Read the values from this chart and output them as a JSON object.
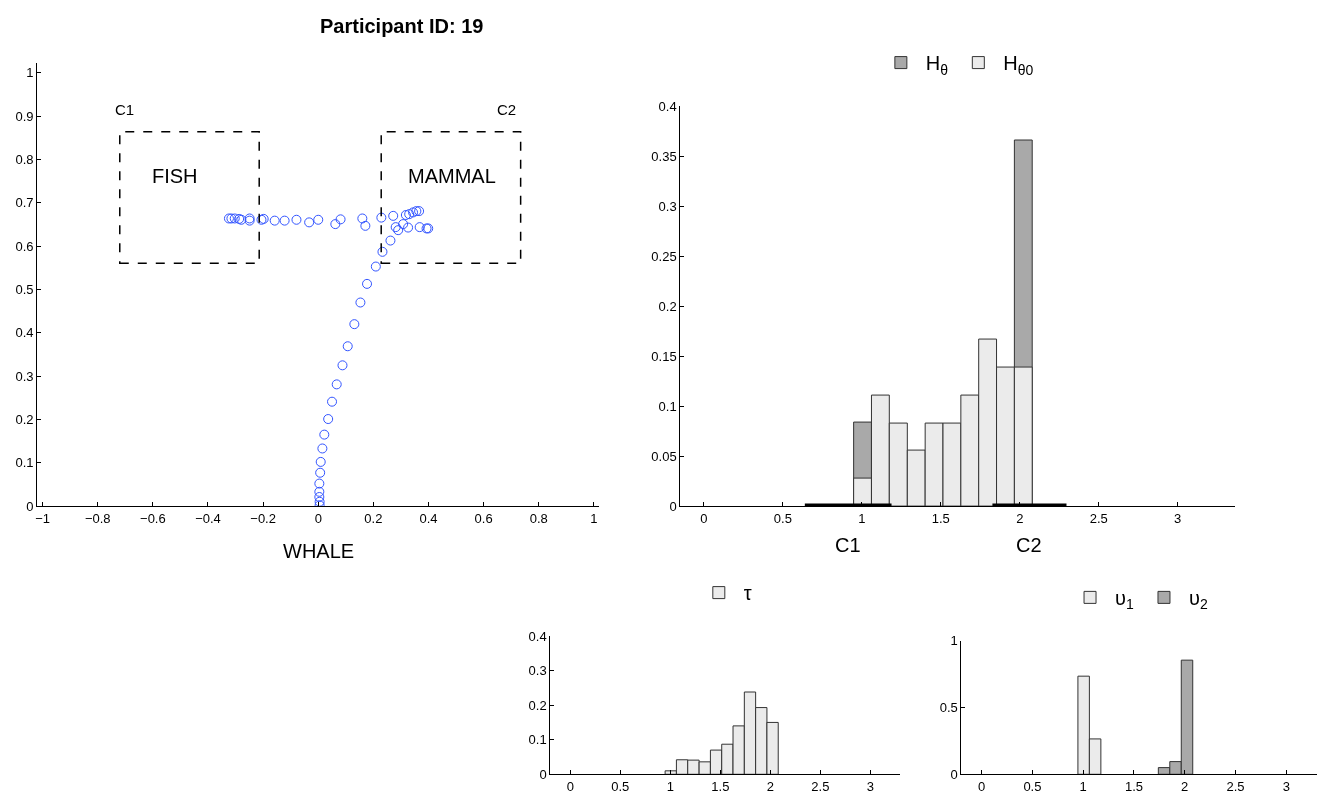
{
  "chart_data": [
    {
      "type": "scatter",
      "title": "Participant ID: 19",
      "xlabel": "WHALE",
      "marker": "circle",
      "legend": false,
      "xlim": [
        -1.02,
        1.02
      ],
      "xticks": [
        -1,
        -0.8,
        -0.6,
        -0.4,
        -0.2,
        0,
        0.2,
        0.4,
        0.6,
        0.8,
        1
      ],
      "ylim": [
        0,
        1.023
      ],
      "yticks": [
        0,
        0.1,
        0.2,
        0.3,
        0.4,
        0.5,
        0.6,
        0.7,
        0.8,
        0.9,
        1
      ],
      "series": [
        {
          "color": "#3355ff",
          "x": [
            0.005,
            0.005,
            0.004,
            0.004,
            0.004,
            0.007,
            0.009,
            0.015,
            0.022,
            0.036,
            0.05,
            0.067,
            0.088,
            0.107,
            0.131,
            0.153,
            0.177,
            0.209,
            0.233,
            0.262,
            -0.324,
            -0.315,
            -0.303,
            -0.287,
            -0.279,
            -0.249,
            -0.249,
            -0.206,
            -0.198,
            -0.158,
            -0.122,
            -0.079,
            -0.033,
            0.0,
            0.062,
            0.081,
            0.16,
            0.171,
            0.229,
            0.272,
            0.281,
            0.29,
            0.308,
            0.318,
            0.326,
            0.33,
            0.344,
            0.356,
            0.366,
            0.368,
            0.393,
            0.399
          ],
          "values": [
            0.002,
            0.01,
            0.021,
            0.033,
            0.052,
            0.077,
            0.102,
            0.133,
            0.165,
            0.201,
            0.241,
            0.281,
            0.325,
            0.369,
            0.42,
            0.47,
            0.513,
            0.553,
            0.587,
            0.613,
            0.664,
            0.664,
            0.664,
            0.663,
            0.661,
            0.664,
            0.659,
            0.661,
            0.663,
            0.659,
            0.659,
            0.661,
            0.655,
            0.661,
            0.651,
            0.662,
            0.664,
            0.647,
            0.666,
            0.67,
            0.644,
            0.637,
            0.651,
            0.672,
            0.643,
            0.674,
            0.678,
            0.681,
            0.681,
            0.644,
            0.641,
            0.641
          ]
        }
      ],
      "annotations": [
        "C1",
        "FISH",
        "C2",
        "MAMMAL"
      ]
    },
    {
      "type": "histogram",
      "legend": "top",
      "bins": [
        0.948,
        1.061,
        1.174,
        1.288,
        1.401,
        1.514,
        1.627,
        1.74,
        1.853,
        1.966,
        2.079
      ],
      "xlim": [
        -0.15,
        3.36
      ],
      "xticks": [
        0,
        0.5,
        1,
        1.5,
        2,
        2.5,
        3
      ],
      "ylim": [
        0,
        0.4
      ],
      "yticks": [
        0,
        0.05,
        0.1,
        0.15,
        0.2,
        0.25,
        0.3,
        0.35,
        0.4
      ],
      "series": [
        {
          "name": "H$_{θ}$",
          "color": "#a9a9a9",
          "values": [
            0.084,
            null,
            null,
            null,
            null,
            null,
            null,
            null,
            null,
            0.366
          ]
        },
        {
          "name": "H$_{θ0}$",
          "color": "#ebebeb",
          "values": [
            0.028,
            0.111,
            0.083,
            0.056,
            0.083,
            0.083,
            0.111,
            0.167,
            0.139,
            0.139
          ]
        },
        {
          "type": "line",
          "color": "#000000",
          "marker": "none",
          "x": [
            0.639,
            1.188
          ],
          "values": [
            0,
            0
          ]
        },
        {
          "type": "line",
          "color": "#000000",
          "marker": "none",
          "x": [
            1.827,
            2.296
          ],
          "values": [
            0,
            0
          ]
        }
      ],
      "annotations": [
        {
          "text": "C1",
          "x": 0.914,
          "y": 0
        },
        {
          "text": "C2",
          "x": 2.06,
          "y": 0
        }
      ]
    },
    {
      "type": "histogram",
      "legend": "top",
      "bins": [
        0.948,
        1.061,
        1.174,
        1.288,
        1.401,
        1.514,
        1.627,
        1.74,
        1.853,
        1.966,
        2.079
      ],
      "xlim": [
        -0.2,
        3.3
      ],
      "xticks": [
        0,
        0.5,
        1,
        1.5,
        2,
        2.5,
        3
      ],
      "ylim": [
        0,
        0.4
      ],
      "yticks": [
        0,
        0.1,
        0.2,
        0.3,
        0.4
      ],
      "series": [
        {
          "name": "τ",
          "color": "#ebebeb",
          "values": [
            0.01,
            0.042,
            0.041,
            0.036,
            0.07,
            0.087,
            0.14,
            0.238,
            0.193,
            0.15
          ]
        }
      ]
    },
    {
      "type": "histogram",
      "legend": "top",
      "bins": [
        0.948,
        1.061,
        1.174,
        1.288,
        1.401,
        1.514,
        1.627,
        1.74,
        1.853,
        1.966,
        2.079
      ],
      "xlim": [
        -0.2,
        3.3
      ],
      "xticks": [
        0,
        0.5,
        1,
        1.5,
        2,
        2.5,
        3
      ],
      "ylim": [
        0,
        1.0
      ],
      "yticks": [
        0,
        0.5,
        1
      ],
      "series": [
        {
          "name": "υ$_{1}$",
          "color": "#ebebeb",
          "values": [
            0.735,
            0.265,
            null,
            null,
            null,
            null,
            null,
            null,
            null,
            null
          ]
        },
        {
          "name": "υ$_{2}$",
          "color": "#a9a9a9",
          "values": [
            null,
            null,
            null,
            null,
            null,
            null,
            null,
            0.05,
            0.095,
            0.855
          ]
        }
      ]
    }
  ]
}
